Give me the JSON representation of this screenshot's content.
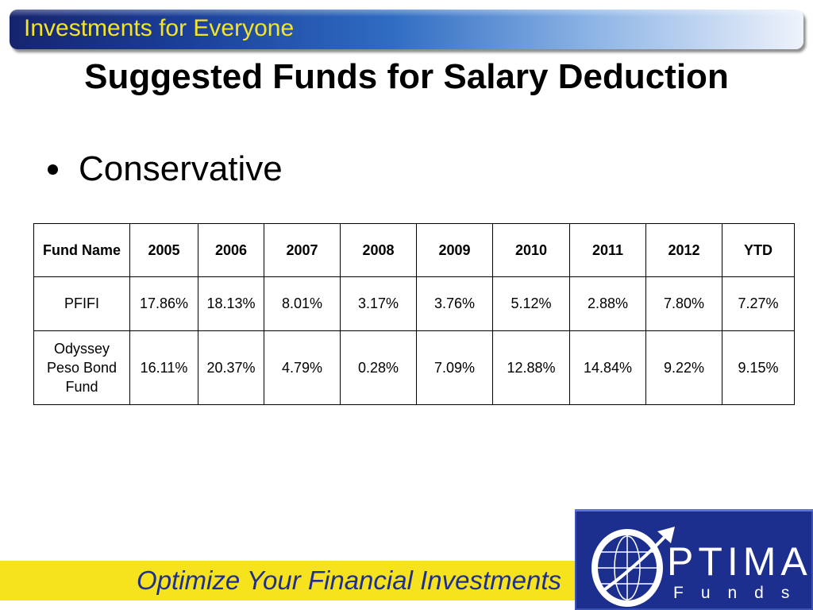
{
  "header": {
    "banner_title": "Investments for Everyone"
  },
  "slide": {
    "title": "Suggested Funds for Salary Deduction",
    "bullet": "Conservative"
  },
  "table": {
    "columns": [
      "Fund Name",
      "2005",
      "2006",
      "2007",
      "2008",
      "2009",
      "2010",
      "2011",
      "2012",
      "YTD"
    ],
    "rows": [
      {
        "fund": "PFIFI",
        "values": [
          "17.86%",
          "18.13%",
          "8.01%",
          "3.17%",
          "3.76%",
          "5.12%",
          "2.88%",
          "7.80%",
          "7.27%"
        ]
      },
      {
        "fund_lines": [
          "Odyssey",
          "Peso Bond",
          "Fund"
        ],
        "values": [
          "16.11%",
          "20.37%",
          "4.79%",
          "0.28%",
          "7.09%",
          "12.88%",
          "14.84%",
          "9.22%",
          "9.15%"
        ]
      }
    ]
  },
  "footer": {
    "tagline": "Optimize Your Financial Investments"
  },
  "logo": {
    "word": "PTIMA",
    "sub": "Funds",
    "icon": "globe-arrow-icon"
  },
  "colors": {
    "banner_text": "#f4e427",
    "footer_bar": "#f7e21e",
    "footer_text": "#1f2f8c",
    "logo_bg": "#1d2f8e"
  }
}
